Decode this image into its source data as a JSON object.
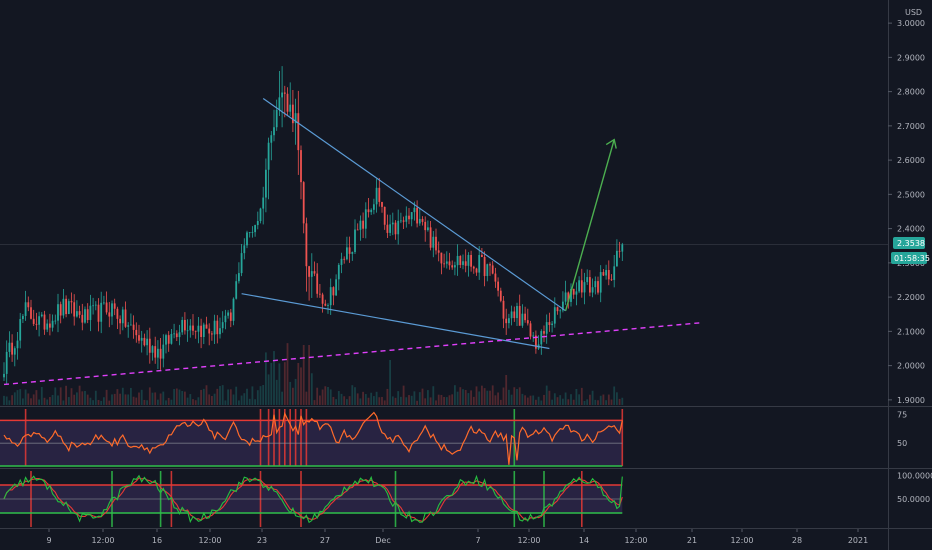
{
  "chart_data": {
    "type": "candlestick",
    "currency": "USD",
    "price_axis": {
      "ticks": [
        "3.0000",
        "2.9000",
        "2.8000",
        "2.7000",
        "2.6000",
        "2.5000",
        "2.4000",
        "2.3000",
        "2.2000",
        "2.1000",
        "2.0000",
        "1.9000"
      ],
      "range": [
        1.885,
        3.05
      ]
    },
    "time_axis": {
      "ticks": [
        "9",
        "12:00",
        "16",
        "12:00",
        "23",
        "27",
        "Dec",
        "7",
        "12:00",
        "14",
        "12:00",
        "21",
        "12:00",
        "28",
        "2021"
      ]
    },
    "last_price": "2.3538",
    "countdown": "01:58:35",
    "price_series": {
      "bars": 230,
      "anchors": [
        [
          0,
          2.0
        ],
        [
          8,
          2.16
        ],
        [
          14,
          2.12
        ],
        [
          22,
          2.17
        ],
        [
          30,
          2.14
        ],
        [
          40,
          2.17
        ],
        [
          50,
          2.08
        ],
        [
          58,
          2.04
        ],
        [
          66,
          2.13
        ],
        [
          76,
          2.1
        ],
        [
          84,
          2.13
        ],
        [
          88,
          2.34
        ],
        [
          95,
          2.45
        ],
        [
          99,
          2.7
        ],
        [
          103,
          2.8
        ],
        [
          106,
          2.75
        ],
        [
          108,
          2.72
        ],
        [
          112,
          2.3
        ],
        [
          116,
          2.22
        ],
        [
          120,
          2.19
        ],
        [
          126,
          2.32
        ],
        [
          132,
          2.4
        ],
        [
          138,
          2.5
        ],
        [
          142,
          2.38
        ],
        [
          148,
          2.42
        ],
        [
          154,
          2.45
        ],
        [
          160,
          2.33
        ],
        [
          166,
          2.31
        ],
        [
          172,
          2.3
        ],
        [
          178,
          2.29
        ],
        [
          182,
          2.25
        ],
        [
          186,
          2.12
        ],
        [
          190,
          2.16
        ],
        [
          194,
          2.1
        ],
        [
          198,
          2.06
        ],
        [
          202,
          2.13
        ],
        [
          206,
          2.16
        ],
        [
          210,
          2.22
        ],
        [
          214,
          2.24
        ],
        [
          218,
          2.23
        ],
        [
          222,
          2.25
        ],
        [
          226,
          2.29
        ],
        [
          229,
          2.354
        ]
      ]
    },
    "drawings": {
      "upper_trendline": [
        [
          96,
          2.78
        ],
        [
          208,
          2.16
        ]
      ],
      "lower_trendline": [
        [
          88,
          2.21
        ],
        [
          202,
          2.05
        ]
      ],
      "support_dashed": [
        [
          0,
          1.945
        ],
        [
          258,
          2.125
        ]
      ],
      "projection_arrow": [
        [
          208,
          2.16
        ],
        [
          226,
          2.66
        ]
      ]
    },
    "indicator_1": {
      "ticks": [
        "75",
        "50"
      ],
      "range": [
        30,
        80
      ],
      "upper_band": 70,
      "middle_band": 50,
      "lower_band": 30
    },
    "indicator_2": {
      "ticks": [
        "100.0000",
        "50.0000"
      ],
      "range": [
        -10,
        110
      ],
      "upper_band": 80,
      "middle_band": 50,
      "lower_band": 20
    },
    "colors": {
      "background": "#131722",
      "up": "#26a69a",
      "down": "#ef5350",
      "trendline": "#5b9bd5",
      "support": "#e040fb",
      "arrow": "#4caf50",
      "osc_line": "#ff6b2b",
      "stoch_k": "#26c040",
      "stoch_d": "#e53935",
      "band_red": "#e53935",
      "band_green": "#2fbf4a",
      "band_fill": "#3a2d5c"
    }
  }
}
